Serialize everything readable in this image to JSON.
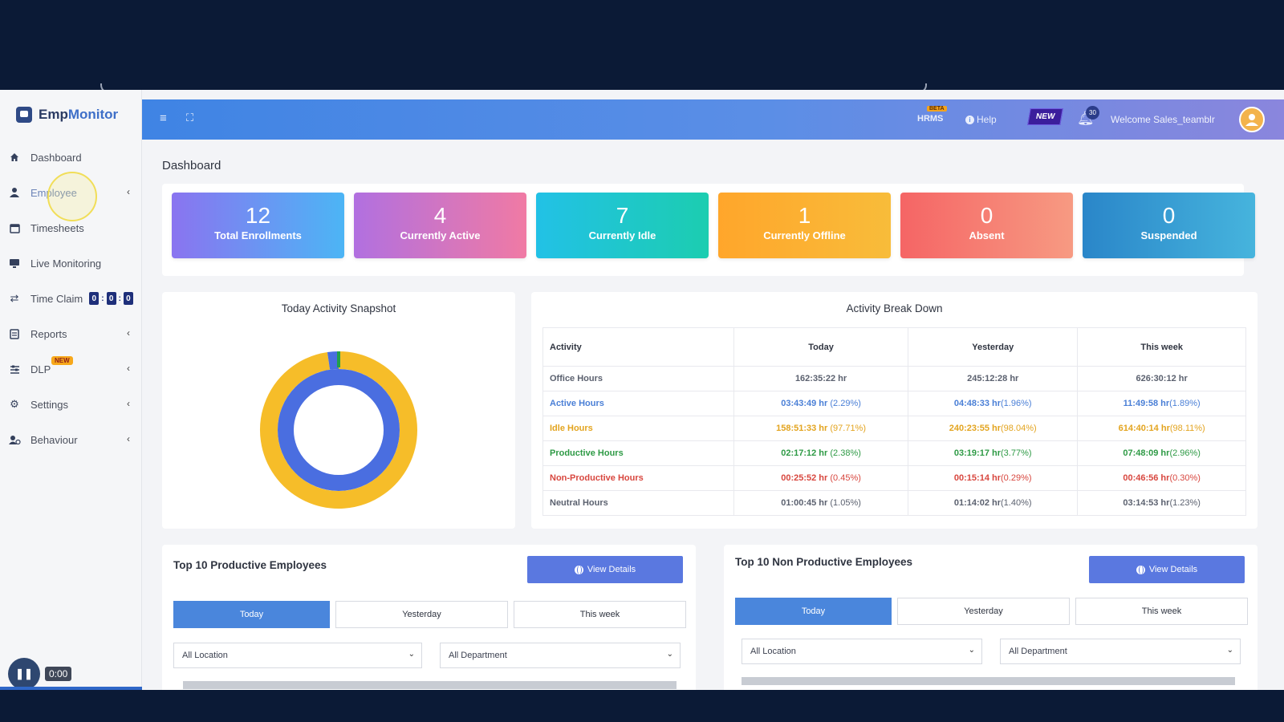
{
  "app": {
    "name_part1": "Emp",
    "name_part2": "Monitor"
  },
  "sidebar": {
    "items": [
      {
        "label": "Dashboard"
      },
      {
        "label": "Employee"
      },
      {
        "label": "Timesheets"
      },
      {
        "label": "Live Monitoring"
      },
      {
        "label": "Time Claim",
        "digits": [
          "0",
          "0",
          "0"
        ]
      },
      {
        "label": "Reports"
      },
      {
        "label": "DLP",
        "badge": "NEW"
      },
      {
        "label": "Settings"
      },
      {
        "label": "Behaviour"
      }
    ]
  },
  "player": {
    "time": "0:00",
    "progress": 1.0
  },
  "topbar": {
    "hrms": "HRMS",
    "beta": "BETA",
    "help": "Help",
    "new_flag": "NEW",
    "notifications": "30",
    "welcome": "Welcome  Sales_teamblr"
  },
  "page": {
    "title": "Dashboard"
  },
  "stats": [
    {
      "value": "12",
      "label": "Total Enrollments"
    },
    {
      "value": "4",
      "label": "Currently Active"
    },
    {
      "value": "7",
      "label": "Currently Idle"
    },
    {
      "value": "1",
      "label": "Currently Offline"
    },
    {
      "value": "0",
      "label": "Absent"
    },
    {
      "value": "0",
      "label": "Suspended"
    }
  ],
  "colors": {
    "stat_gradients": [
      [
        "#8a74f0",
        "#4cb5f5"
      ],
      [
        "#b170e0",
        "#f07aa4"
      ],
      [
        "#22c1e6",
        "#1ccdb0"
      ],
      [
        "#ffa62b",
        "#f8bc3a"
      ],
      [
        "#f56565",
        "#f79a82"
      ],
      [
        "#2a86c9",
        "#46b4dd"
      ]
    ],
    "active": "#4a6ee0",
    "idle": "#f6bd29",
    "productive": "#22a04a"
  },
  "snapshot": {
    "title": "Today Activity Snapshot",
    "chart_data": {
      "type": "pie",
      "title": "Today Activity Snapshot",
      "rings": [
        {
          "name": "outer",
          "slices": [
            {
              "name": "Idle Hours",
              "value": 97.71
            },
            {
              "name": "Active Hours",
              "value": 2.29
            }
          ]
        },
        {
          "name": "inner",
          "slices": [
            {
              "name": "Active Hours",
              "value": 100
            }
          ]
        }
      ]
    }
  },
  "breakdown": {
    "title": "Activity Break Down",
    "headers": [
      "Activity",
      "Today",
      "Yesterday",
      "This week"
    ],
    "rows": [
      {
        "name": "Office Hours",
        "cls": "c-gray",
        "cells": [
          [
            "162:35:22 hr",
            ""
          ],
          [
            "245:12:28 hr",
            ""
          ],
          [
            "626:30:12 hr",
            ""
          ]
        ]
      },
      {
        "name": "Active Hours",
        "cls": "c-blue",
        "cells": [
          [
            "03:43:49 hr",
            " (2.29%)"
          ],
          [
            "04:48:33 hr",
            "(1.96%)"
          ],
          [
            "11:49:58 hr",
            "(1.89%)"
          ]
        ]
      },
      {
        "name": "Idle Hours",
        "cls": "c-orange",
        "cells": [
          [
            "158:51:33 hr",
            " (97.71%)"
          ],
          [
            "240:23:55 hr",
            "(98.04%)"
          ],
          [
            "614:40:14 hr",
            "(98.11%)"
          ]
        ]
      },
      {
        "name": "Productive Hours",
        "cls": "c-green",
        "cells": [
          [
            "02:17:12 hr",
            " (2.38%)"
          ],
          [
            "03:19:17 hr",
            "(3.77%)"
          ],
          [
            "07:48:09 hr",
            "(2.96%)"
          ]
        ]
      },
      {
        "name": "Non-Productive Hours",
        "cls": "c-red",
        "cells": [
          [
            "00:25:52 hr",
            " (0.45%)"
          ],
          [
            "00:15:14 hr",
            "(0.29%)"
          ],
          [
            "00:46:56 hr",
            "(0.30%)"
          ]
        ]
      },
      {
        "name": "Neutral Hours",
        "cls": "c-gray",
        "cells": [
          [
            "01:00:45 hr",
            " (1.05%)"
          ],
          [
            "01:14:02 hr",
            "(1.40%)"
          ],
          [
            "03:14:53 hr",
            "(1.23%)"
          ]
        ]
      }
    ]
  },
  "productive": {
    "title": "Top 10 Productive Employees",
    "view_details": "View Details",
    "tabs": [
      "Today",
      "Yesterday",
      "This week"
    ],
    "location": "All Location",
    "department": "All Department"
  },
  "nonproductive": {
    "title": "Top 10 Non Productive Employees",
    "view_details": "View Details",
    "tabs": [
      "Today",
      "Yesterday",
      "This week"
    ],
    "location": "All Location",
    "department": "All Department"
  }
}
